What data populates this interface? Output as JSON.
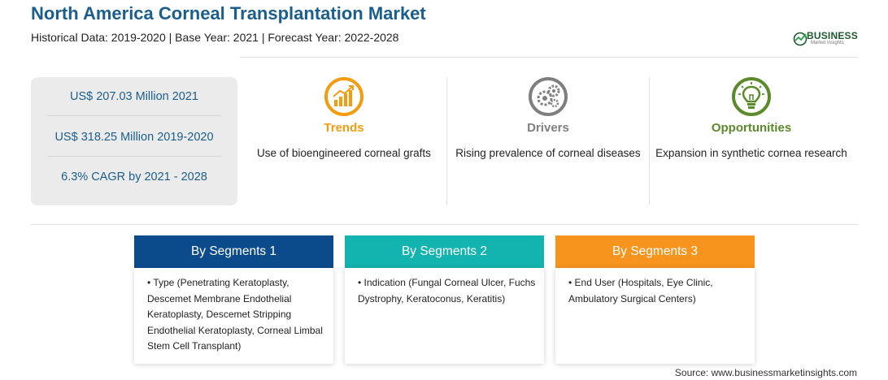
{
  "header": {
    "title": "North America Corneal Transplantation Market",
    "subtitle": "Historical Data: 2019-2020 | Base Year: 2021 | Forecast Year: 2022-2028"
  },
  "logo": {
    "main": "BUSINESS",
    "sub": "Market Insights",
    "color": "#1d5a2f",
    "accent": "#2e9e4a"
  },
  "stats": [
    "US$ 207.03 Million 2021",
    "US$ 318.25 Million 2019-2020",
    "6.3% CAGR by 2021 - 2028"
  ],
  "panels": [
    {
      "title": "Trends",
      "desc": "Use of bioengineered corneal grafts",
      "color": "#f39c12",
      "icon": "bar-chart-growth-icon"
    },
    {
      "title": "Drivers",
      "desc": "Rising prevalence of corneal diseases",
      "color": "#7f7f7f",
      "icon": "gears-icon"
    },
    {
      "title": "Opportunities",
      "desc": "Expansion in synthetic cornea research",
      "color": "#5a8a2b",
      "icon": "lightbulb-icon"
    }
  ],
  "segments": [
    {
      "title": "By Segments 1",
      "color": "#0b4a8b",
      "text": "• Type (Penetrating Keratoplasty, Descemet Membrane Endothelial Keratoplasty, Descemet Stripping Endothelial Keratoplasty, Corneal Limbal Stem Cell Transplant)"
    },
    {
      "title": "By Segments 2",
      "color": "#13b3b0",
      "text": "• Indication (Fungal Corneal Ulcer, Fuchs Dystrophy, Keratoconus, Keratitis)"
    },
    {
      "title": "By Segments 3",
      "color": "#f7941d",
      "text": "• End User (Hospitals, Eye Clinic, Ambulatory Surgical Centers)"
    }
  ],
  "source": "Source: www.businessmarketinsights.com"
}
